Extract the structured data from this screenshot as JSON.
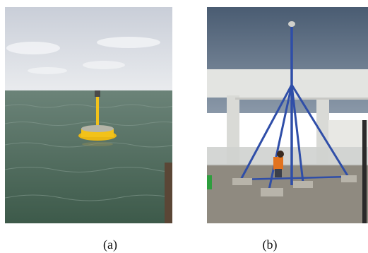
{
  "figure": {
    "panels": [
      {
        "label": "(a)"
      },
      {
        "label": "(b)"
      }
    ]
  },
  "colors": {
    "sea": "#4f6a5a",
    "sky_a": "#d9dde4",
    "buoy": "#f2c21a",
    "sky_b": "#5c6f86",
    "mast": "#2f4ea8",
    "wall": "#e6e6e3",
    "roof": "#8f8a80"
  }
}
